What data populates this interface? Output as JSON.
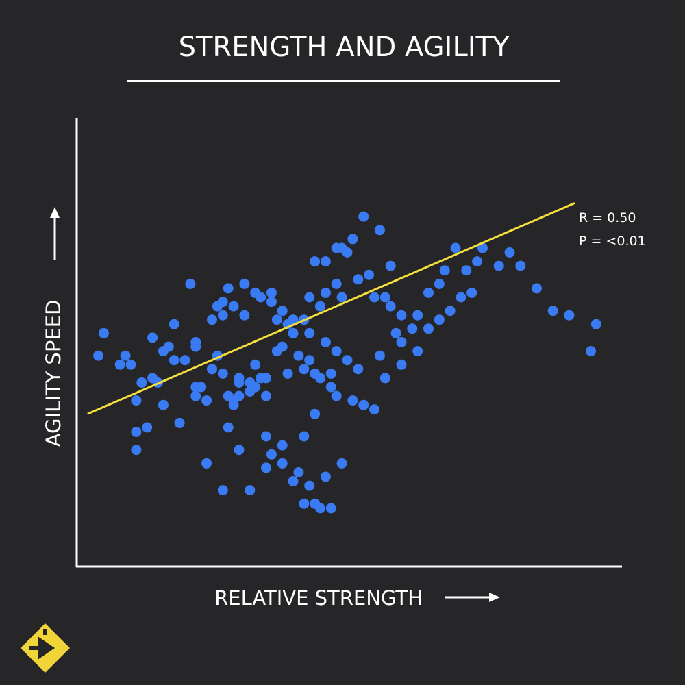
{
  "chart_data": {
    "type": "scatter",
    "title": "STRENGTH AND AGILITY",
    "xlabel": "RELATIVE STRENGTH",
    "ylabel": "AGILITY SPEED",
    "annotations": [
      "R = 0.50",
      "P = <0.01"
    ],
    "xlim": [
      0,
      100
    ],
    "ylim": [
      0,
      100
    ],
    "grid": false,
    "legend": "none",
    "trendline": {
      "x": [
        2,
        92
      ],
      "y": [
        34,
        81
      ]
    },
    "x": [
      4,
      5,
      9,
      8,
      11,
      11,
      12,
      14,
      15,
      16,
      18,
      17,
      22,
      20,
      22,
      22,
      24,
      23,
      18,
      21,
      25,
      26,
      27,
      28,
      31,
      32,
      33,
      35,
      35,
      29,
      28,
      25,
      26,
      22,
      16,
      14,
      10,
      11,
      13,
      11,
      19,
      24,
      27,
      30,
      30,
      32,
      29,
      34,
      39,
      37,
      38,
      40,
      40,
      42,
      45,
      43,
      46,
      48,
      46,
      44,
      49,
      48,
      51,
      50,
      52,
      54,
      55,
      57,
      58,
      60,
      59,
      62,
      63,
      65,
      67,
      68,
      70,
      72,
      75,
      74,
      78,
      80,
      82,
      85,
      88,
      91,
      96,
      95,
      60,
      56,
      52,
      47,
      44,
      42,
      38,
      35,
      33,
      30,
      27,
      25,
      28,
      30,
      32,
      35,
      36,
      38,
      40,
      41,
      42,
      43,
      44,
      45,
      46,
      47,
      49,
      50,
      48,
      46,
      43,
      40,
      38,
      36,
      33,
      31,
      29,
      27,
      34,
      36,
      37,
      39,
      41,
      42,
      43,
      44,
      45,
      47,
      48,
      51,
      53,
      55,
      57,
      60,
      63,
      65,
      67,
      69,
      71,
      73,
      58,
      56,
      53,
      49
    ],
    "y": [
      47,
      52,
      47,
      45,
      37,
      37,
      41,
      42,
      41,
      36,
      46,
      49,
      50,
      46,
      38,
      40,
      37,
      40,
      54,
      63,
      55,
      58,
      59,
      62,
      56,
      41,
      45,
      42,
      38,
      37,
      38,
      44,
      47,
      49,
      48,
      51,
      45,
      30,
      31,
      26,
      32,
      23,
      17,
      41,
      38,
      39,
      36,
      42,
      43,
      48,
      49,
      52,
      55,
      55,
      58,
      60,
      61,
      63,
      68,
      68,
      71,
      71,
      73,
      70,
      64,
      65,
      60,
      60,
      58,
      56,
      52,
      53,
      56,
      61,
      63,
      66,
      71,
      66,
      71,
      68,
      67,
      70,
      67,
      62,
      57,
      56,
      54,
      48,
      50,
      47,
      44,
      43,
      34,
      29,
      27,
      29,
      40,
      42,
      43,
      44,
      31,
      26,
      17,
      22,
      25,
      23,
      19,
      21,
      14,
      18,
      14,
      13,
      20,
      13,
      23,
      46,
      48,
      50,
      52,
      55,
      57,
      59,
      61,
      63,
      58,
      56,
      60,
      61,
      55,
      54,
      47,
      44,
      46,
      43,
      42,
      40,
      38,
      37,
      36,
      35,
      42,
      45,
      48,
      53,
      55,
      57,
      60,
      61,
      67,
      75,
      78,
      60
    ]
  },
  "logo": {
    "name": "brand-logo",
    "color": "#f1d538"
  },
  "colors": {
    "background": "#262628",
    "point": "#3a7af2",
    "trendline": "#f4df3d",
    "axis": "#ffffff"
  }
}
